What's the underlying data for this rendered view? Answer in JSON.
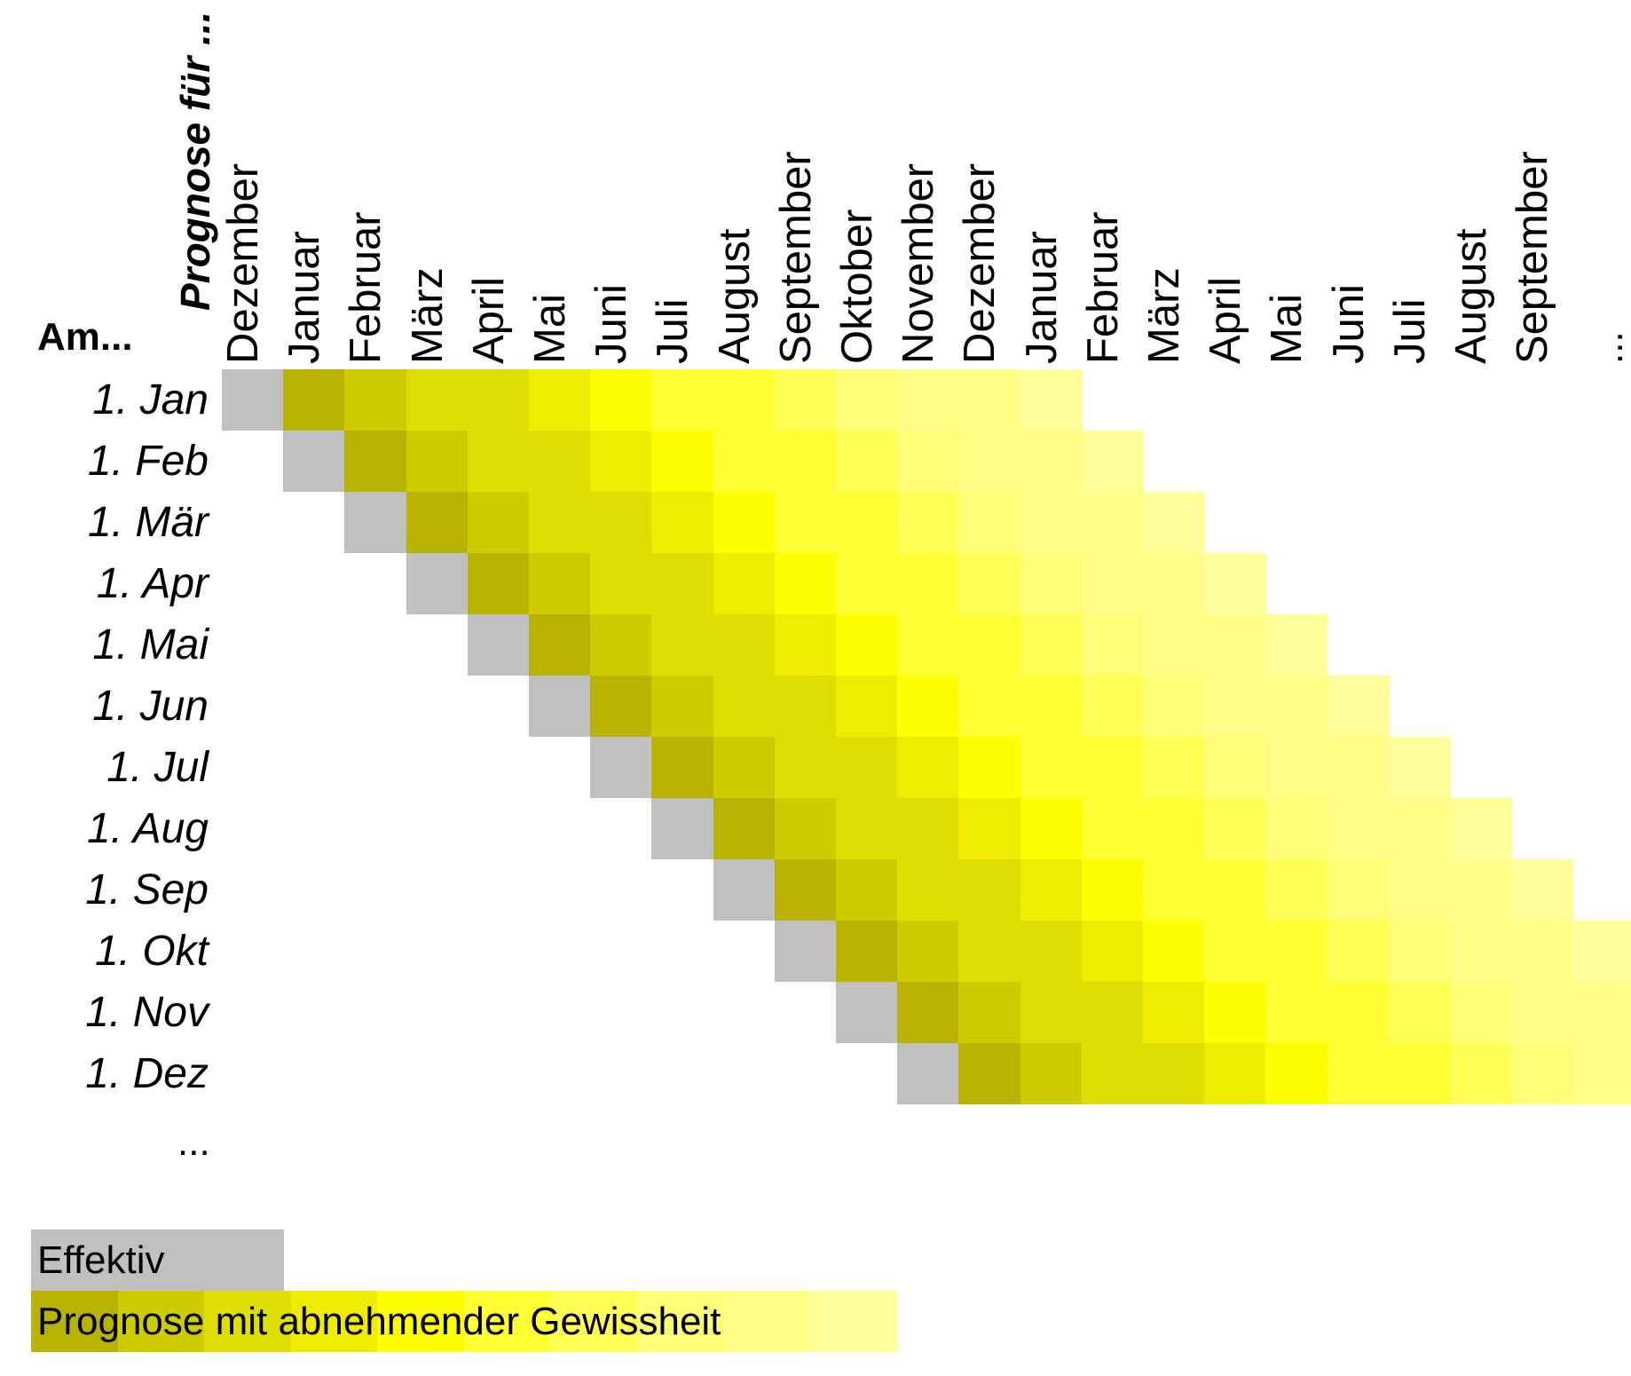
{
  "axis_title": "Prognose für ...",
  "row_title": "Am...",
  "row_ellipsis": "...",
  "col_ellipsis": "...",
  "columns": [
    "Dezember",
    "Januar",
    "Februar",
    "März",
    "April",
    "Mai",
    "Juni",
    "Juli",
    "August",
    "September",
    "Oktober",
    "November",
    "Dezember",
    "Januar",
    "Februar",
    "März",
    "April",
    "Mai",
    "Juni",
    "Juli",
    "August",
    "September"
  ],
  "rows": [
    "1. Jan",
    "1. Feb",
    "1. Mär",
    "1. Apr",
    "1. Mai",
    "1. Jun",
    "1. Jul",
    "1. Aug",
    "1. Sep",
    "1. Okt",
    "1. Nov",
    "1. Dez"
  ],
  "colors": {
    "effektiv": "#c0c0c0",
    "forecast_scale": [
      "#b7b300",
      "#cccc00",
      "#dede00",
      "#f0ec00",
      "#ffff00",
      "#ffff33",
      "#ffff55",
      "#ffff77",
      "#ffff88",
      "#ffff99"
    ]
  },
  "legend": {
    "effektiv": "Effektiv",
    "prognose": "Prognose mit abnehmender Gewissheit"
  },
  "matrix_rule": "Row i shows one grey 'Effektiv' cell at column i, followed by up to 13 forecast cells fading from dark to light yellow."
}
